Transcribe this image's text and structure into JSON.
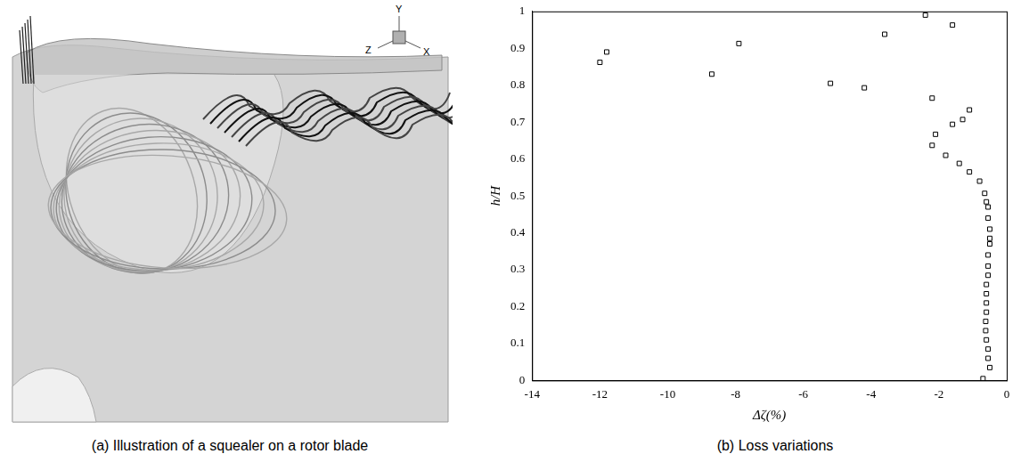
{
  "illustration": {
    "caption": "(a) Illustration of a squealer on a rotor blade",
    "axis_labels": [
      "Y",
      "Z",
      "X"
    ]
  },
  "chart_data": {
    "type": "scatter",
    "caption": "(b) Loss variations",
    "x_label": "Δζ(%)",
    "y_label": "h/H",
    "x": [
      -12.0,
      -11.8,
      -8.7,
      -7.9,
      -5.2,
      -4.2,
      -3.6,
      -2.4,
      -1.6,
      -2.2,
      -1.1,
      -1.3,
      -1.6,
      -2.1,
      -2.2,
      -1.8,
      -1.4,
      -1.1,
      -0.8,
      -0.65,
      -0.6,
      -0.55,
      -0.55,
      -0.5,
      -0.5,
      -0.5,
      -0.55,
      -0.55,
      -0.55,
      -0.6,
      -0.6,
      -0.6,
      -0.6,
      -0.62,
      -0.62,
      -0.6,
      -0.55,
      -0.55,
      -0.5,
      -0.7
    ],
    "values": [
      0.862,
      0.89,
      0.83,
      0.913,
      0.805,
      0.793,
      0.938,
      0.99,
      0.963,
      0.765,
      0.733,
      0.707,
      0.694,
      0.667,
      0.637,
      0.61,
      0.588,
      0.565,
      0.54,
      0.507,
      0.484,
      0.47,
      0.44,
      0.41,
      0.385,
      0.37,
      0.34,
      0.31,
      0.285,
      0.26,
      0.235,
      0.21,
      0.185,
      0.16,
      0.135,
      0.11,
      0.085,
      0.06,
      0.035,
      0.005
    ],
    "color": "#000000",
    "marker": "square",
    "xlim": [
      -14,
      0
    ],
    "xticks": [
      -14,
      -12,
      -10,
      -8,
      -6,
      -4,
      -2,
      0
    ],
    "ylim": [
      0,
      1
    ],
    "yticks": [
      0,
      0.1,
      0.2,
      0.3,
      0.4,
      0.5,
      0.6,
      0.7,
      0.8,
      0.9,
      1
    ],
    "grid": false
  }
}
